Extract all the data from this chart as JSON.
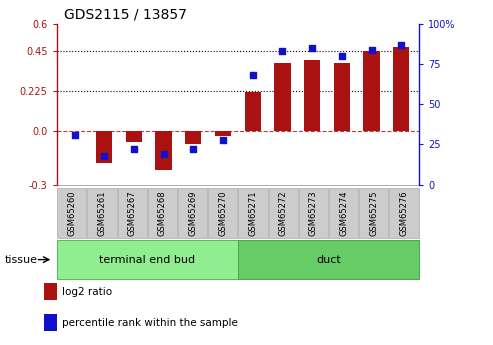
{
  "title": "GDS2115 / 13857",
  "categories": [
    "GSM65260",
    "GSM65261",
    "GSM65267",
    "GSM65268",
    "GSM65269",
    "GSM65270",
    "GSM65271",
    "GSM65272",
    "GSM65273",
    "GSM65274",
    "GSM65275",
    "GSM65276"
  ],
  "log2_ratio": [
    0.0,
    -0.18,
    -0.06,
    -0.22,
    -0.07,
    -0.03,
    0.22,
    0.38,
    0.4,
    0.38,
    0.45,
    0.47
  ],
  "percentile_rank": [
    31,
    18,
    22,
    19,
    22,
    28,
    68,
    83,
    85,
    80,
    84,
    87
  ],
  "bar_color": "#AA1111",
  "dot_color": "#1111CC",
  "ylim_left": [
    -0.3,
    0.6
  ],
  "ylim_right": [
    0,
    100
  ],
  "yticks_left": [
    -0.3,
    0.0,
    0.225,
    0.45,
    0.6
  ],
  "yticks_right": [
    0,
    25,
    50,
    75,
    100
  ],
  "dotted_lines": [
    0.225,
    0.45
  ],
  "tissue_groups": [
    {
      "label": "terminal end bud",
      "indices": [
        0,
        1,
        2,
        3,
        4,
        5
      ],
      "color": "#90EE90",
      "edge_color": "#55BB55"
    },
    {
      "label": "duct",
      "indices": [
        6,
        7,
        8,
        9,
        10,
        11
      ],
      "color": "#66CC66",
      "edge_color": "#44AA44"
    }
  ],
  "legend_entries": [
    {
      "label": "log2 ratio",
      "color": "#AA1111"
    },
    {
      "label": "percentile rank within the sample",
      "color": "#1111CC"
    }
  ],
  "tissue_label": "tissue",
  "bar_width": 0.55,
  "gsm_bg_color": "#CCCCCC",
  "gsm_border_color": "#AAAAAA"
}
